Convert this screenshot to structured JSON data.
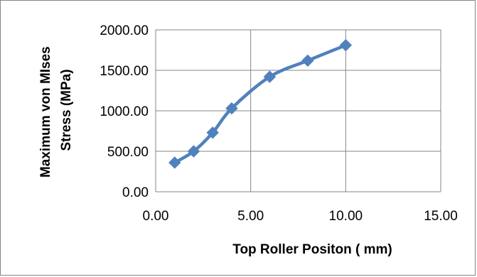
{
  "chart_data": {
    "type": "line",
    "title": "",
    "xlabel": "Top Roller Positon ( mm)",
    "ylabel_lines": [
      "Maximum von MIses",
      "Stress (MPa)"
    ],
    "xlim": [
      0,
      15
    ],
    "ylim": [
      0,
      2000
    ],
    "x_ticks": [
      0,
      5,
      10,
      15
    ],
    "y_ticks": [
      0,
      500,
      1000,
      1500,
      2000
    ],
    "x_tick_labels": [
      "0.00",
      "5.00",
      "10.00",
      "15.00"
    ],
    "y_tick_labels": [
      "0.00",
      "500.00",
      "1000.00",
      "1500.00",
      "2000.00"
    ],
    "grid": true,
    "legend": "none",
    "series": [
      {
        "x": [
          1,
          2,
          3,
          4,
          6,
          8,
          10
        ],
        "y": [
          360,
          500,
          730,
          1030,
          1420,
          1620,
          1810
        ],
        "color": "#4f81bd",
        "marker": "diamond"
      }
    ]
  }
}
